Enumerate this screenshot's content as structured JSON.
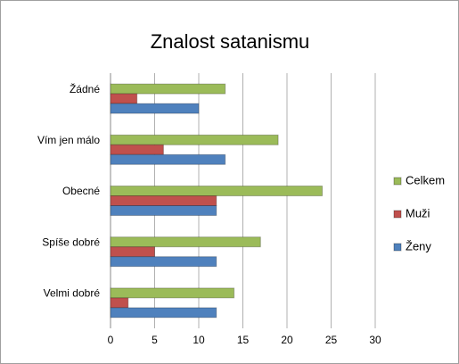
{
  "chart_data": {
    "type": "hbar",
    "title": "Znalost satanismu",
    "categories": [
      "Žádné",
      "Vím jen málo",
      "Obecné",
      "Spíše dobré",
      "Velmi dobré"
    ],
    "series": [
      {
        "name": "Celkem",
        "color": "#9bbb59",
        "values": [
          13,
          19,
          24,
          17,
          14
        ]
      },
      {
        "name": "Muži",
        "color": "#c0504d",
        "values": [
          3,
          6,
          12,
          5,
          2
        ]
      },
      {
        "name": "Ženy",
        "color": "#4f81bd",
        "values": [
          10,
          13,
          12,
          12,
          12
        ]
      }
    ],
    "xlim": [
      0,
      30
    ],
    "xticks": [
      0,
      5,
      10,
      15,
      20,
      25,
      30
    ],
    "grid": true,
    "legend": "right"
  }
}
